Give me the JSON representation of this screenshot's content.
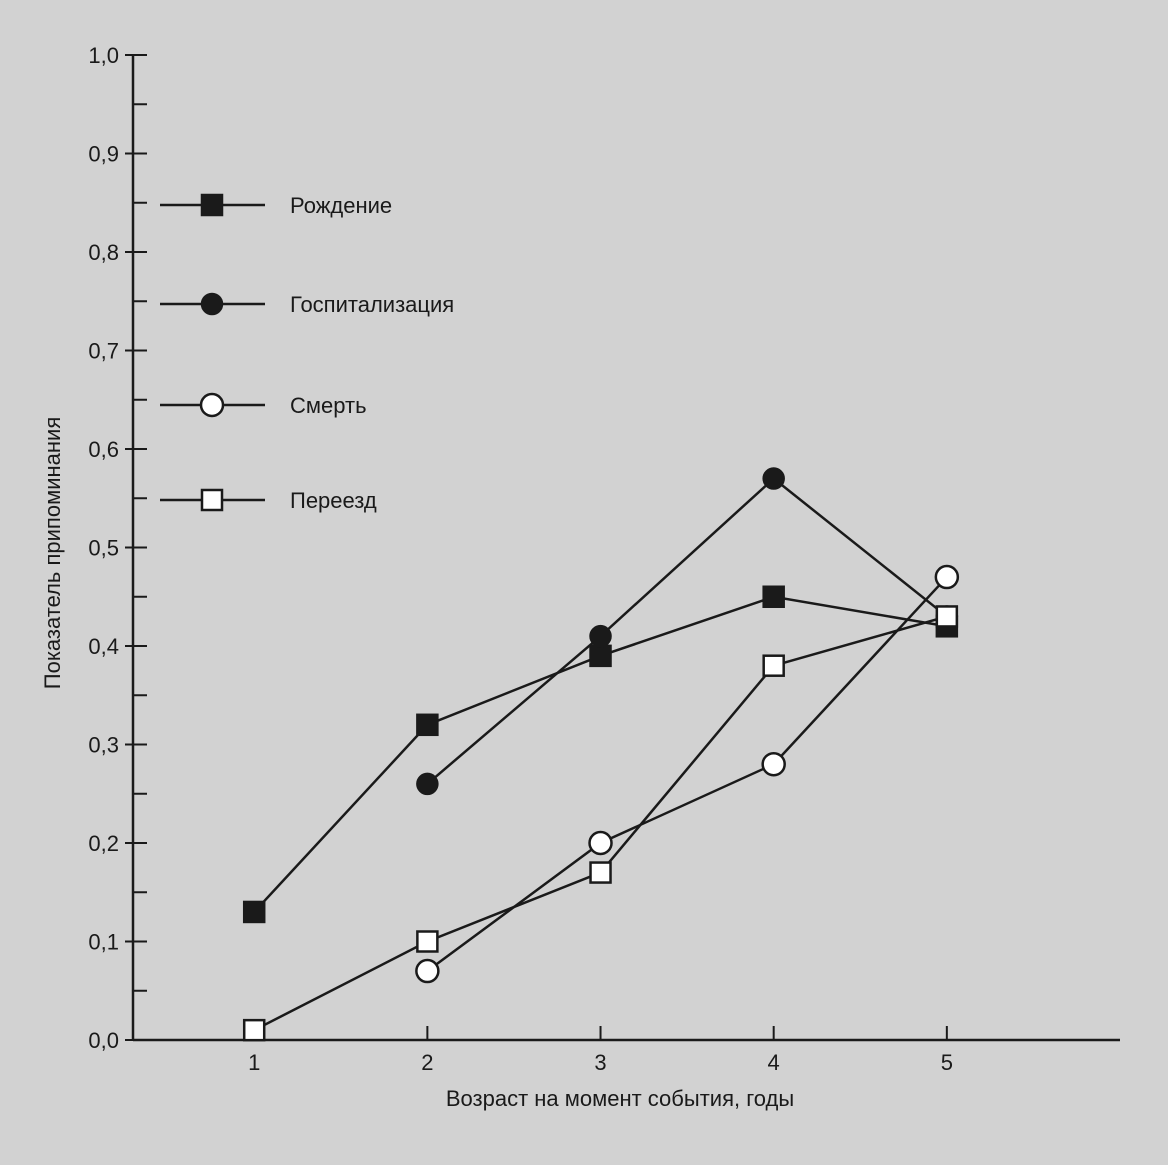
{
  "chart_data": {
    "type": "line",
    "title": "",
    "xlabel": "Возраст на момент события, годы",
    "ylabel": "Показатель припоминания",
    "x": [
      1,
      2,
      3,
      4,
      5
    ],
    "xticks": [
      "1",
      "2",
      "3",
      "4",
      "5"
    ],
    "xlim": [
      0.3,
      6.0
    ],
    "ylim": [
      0.0,
      1.0
    ],
    "yticks": [
      "0,0",
      "0,1",
      "0,2",
      "0,3",
      "0,4",
      "0,5",
      "0,6",
      "0,7",
      "0,8",
      "0,9",
      "1,0"
    ],
    "grid": false,
    "legend_position": "top-left",
    "series": [
      {
        "name": "Рождение",
        "marker": "square-filled",
        "values": [
          0.13,
          0.32,
          0.39,
          0.45,
          0.42
        ]
      },
      {
        "name": "Госпитализация",
        "marker": "circle-filled",
        "values": [
          null,
          0.26,
          0.41,
          0.57,
          0.43
        ]
      },
      {
        "name": "Смерть",
        "marker": "circle-open",
        "values": [
          null,
          0.07,
          0.2,
          0.28,
          0.47
        ]
      },
      {
        "name": "Переезд",
        "marker": "square-open",
        "values": [
          0.01,
          0.1,
          0.17,
          0.38,
          0.43
        ]
      }
    ]
  }
}
